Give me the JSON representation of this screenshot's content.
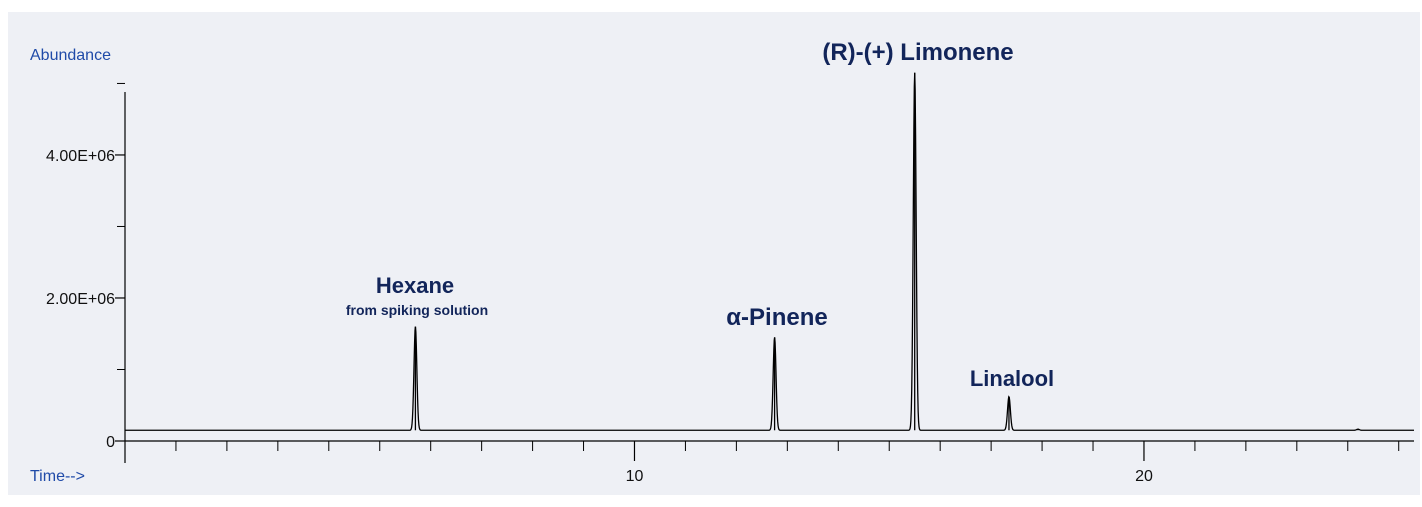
{
  "chart_data": {
    "type": "line",
    "ylabel": "Abundance",
    "xlabel": "Time-->",
    "xlim": [
      0,
      25.3
    ],
    "ylim": [
      0,
      5300000
    ],
    "x_ticks": [
      {
        "value": 10,
        "label": "10"
      },
      {
        "value": 20,
        "label": "20"
      }
    ],
    "y_ticks": [
      {
        "value": 0,
        "label": "0"
      },
      {
        "value": 2000000,
        "label": "2.00E+06"
      },
      {
        "value": 4000000,
        "label": "4.00E+06"
      }
    ],
    "baseline": 150000,
    "series": [
      {
        "peaks": [
          {
            "x": 5.7,
            "y": 1600000
          },
          {
            "x": 12.75,
            "y": 1450000
          },
          {
            "x": 15.5,
            "y": 5150000
          },
          {
            "x": 17.35,
            "y": 620000
          },
          {
            "x": 24.2,
            "y": 165000
          }
        ]
      }
    ],
    "annotations": [
      {
        "text": "Hexane",
        "x": 5.7,
        "y": 1600000,
        "sub": "from spiking solution"
      },
      {
        "text": "α-Pinene",
        "x": 12.75,
        "y": 1450000,
        "sub": ""
      },
      {
        "text": "(R)-(+) Limonene",
        "x": 15.5,
        "y": 5150000,
        "sub": ""
      },
      {
        "text": "Linalool",
        "x": 17.35,
        "y": 620000,
        "sub": ""
      }
    ],
    "colors": {
      "trace": "#000000",
      "axis_label": "#1f4aa8",
      "peak_label": "#12255a",
      "panel_background": "#eef0f5"
    }
  }
}
